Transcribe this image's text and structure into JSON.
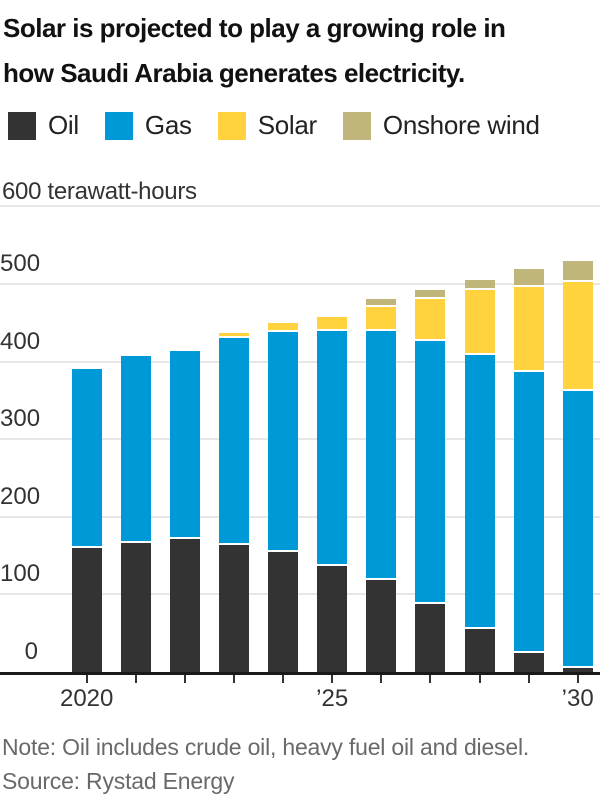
{
  "header": {
    "title_lines": [
      "Solar is projected to play a growing role in",
      "how Saudi Arabia generates electricity."
    ]
  },
  "legend": {
    "items": [
      {
        "label": "Oil",
        "color": "#333333"
      },
      {
        "label": "Gas",
        "color": "#0099d8"
      },
      {
        "label": "Solar",
        "color": "#ffd23e"
      },
      {
        "label": "Onshore wind",
        "color": "#c0b67c"
      }
    ]
  },
  "chart_data": {
    "type": "bar",
    "stacked": true,
    "title": "Solar is projected to play a growing role in how Saudi Arabia generates electricity.",
    "unit_label": "600 terawatt-hours",
    "ylabel": "terawatt-hours",
    "ylim": [
      0,
      600
    ],
    "ytick_step": 100,
    "yticks_labeled": [
      0,
      100,
      200,
      300,
      400,
      500
    ],
    "grid": true,
    "legend_position": "top",
    "categories": [
      2020,
      2021,
      2022,
      2023,
      2024,
      2025,
      2026,
      2027,
      2028,
      2029,
      2030
    ],
    "series": [
      {
        "name": "Oil",
        "color": "#333333",
        "values": [
          160,
          166,
          171,
          164,
          155,
          136,
          118,
          87,
          55,
          25,
          5
        ]
      },
      {
        "name": "Gas",
        "color": "#0099d8",
        "values": [
          230,
          241,
          243,
          266,
          283,
          303,
          322,
          340,
          353,
          361,
          357
        ]
      },
      {
        "name": "Solar",
        "color": "#ffd23e",
        "values": [
          0,
          0,
          0,
          7,
          12,
          19,
          30,
          54,
          84,
          110,
          140
        ]
      },
      {
        "name": "Onshore wind",
        "color": "#c0b67c",
        "values": [
          0,
          0,
          0,
          0,
          0,
          0,
          11,
          11,
          13,
          23,
          28
        ]
      }
    ],
    "xticks": [
      {
        "index": 0,
        "label": "2020"
      },
      {
        "index": 5,
        "label": "’25"
      },
      {
        "index": 10,
        "label": "’30"
      }
    ]
  },
  "footer": {
    "note": "Note: Oil includes crude oil, heavy fuel oil and diesel.",
    "source": "Source: Rystad Energy"
  }
}
